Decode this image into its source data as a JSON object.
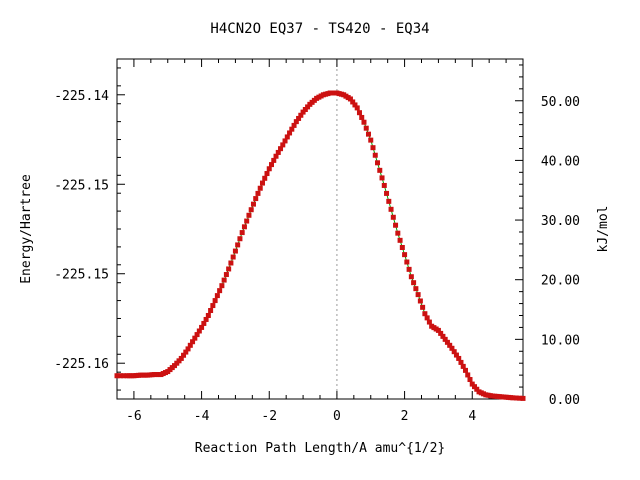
{
  "chart_data": {
    "type": "line",
    "title": "H4CN2O   EQ37 - TS420 - EQ34",
    "xlabel": "Reaction Path Length/A amu^{1/2}",
    "ylabel_left": "Energy/Hartree",
    "ylabel_right": "kJ/mol",
    "xlim": [
      -6.5,
      5.5
    ],
    "y_right_lim": [
      0,
      57
    ],
    "x_ticks": [
      "-6",
      "-4",
      "-2",
      "0",
      "2",
      "4"
    ],
    "x_tick_values": [
      -6,
      -4,
      -2,
      0,
      2,
      4
    ],
    "y_left_ticks": [
      "-225.14",
      "-225.15",
      "-225.15",
      "-225.16"
    ],
    "y_left_tick_values_kjmol": [
      51,
      36,
      21,
      6
    ],
    "y_right_ticks": [
      "50.00",
      "40.00",
      "30.00",
      "20.00",
      "10.00",
      "0.00"
    ],
    "y_right_tick_values": [
      50,
      40,
      30,
      20,
      10,
      0
    ],
    "ts_marker_x": 0,
    "grid": false,
    "legend": "none",
    "colors": {
      "line": "#00a000",
      "marker": "#cc1111",
      "ts_line": "#999999"
    },
    "series": [
      {
        "x": [
          -6.5,
          -6.2,
          -6.0,
          -5.8,
          -5.6,
          -5.4,
          -5.2,
          -5.0,
          -4.8,
          -4.6,
          -4.4,
          -4.2,
          -4.0,
          -3.8,
          -3.6,
          -3.4,
          -3.2,
          -3.0,
          -2.8,
          -2.6,
          -2.4,
          -2.2,
          -2.0,
          -1.8,
          -1.6,
          -1.4,
          -1.2,
          -1.0,
          -0.8,
          -0.6,
          -0.4,
          -0.2,
          0.0,
          0.2,
          0.4,
          0.6,
          0.8,
          1.0,
          1.2,
          1.4,
          1.6,
          1.8,
          2.0,
          2.2,
          2.4,
          2.6,
          2.8,
          3.0,
          3.2,
          3.4,
          3.6,
          3.8,
          4.0,
          4.2,
          4.4,
          4.6,
          4.8,
          5.0,
          5.2,
          5.5
        ],
        "y": [
          3.9,
          3.9,
          3.9,
          4.0,
          4.0,
          4.1,
          4.1,
          4.6,
          5.6,
          6.8,
          8.4,
          10.2,
          12.0,
          14.0,
          16.5,
          19.0,
          21.8,
          24.8,
          27.9,
          30.8,
          33.6,
          36.2,
          38.6,
          40.7,
          42.6,
          44.6,
          46.5,
          48.1,
          49.4,
          50.4,
          51.0,
          51.3,
          51.3,
          51.0,
          50.3,
          48.8,
          46.4,
          43.4,
          39.6,
          35.8,
          31.8,
          27.8,
          24.2,
          20.5,
          17.5,
          14.3,
          12.2,
          11.5,
          10.0,
          8.5,
          6.8,
          4.8,
          2.5,
          1.2,
          0.7,
          0.5,
          0.4,
          0.3,
          0.2,
          0.1
        ]
      }
    ]
  }
}
